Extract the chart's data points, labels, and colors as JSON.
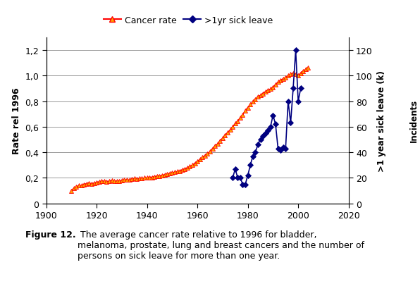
{
  "cancer_rate": {
    "years": [
      1910,
      1911,
      1912,
      1913,
      1914,
      1915,
      1916,
      1917,
      1918,
      1919,
      1920,
      1921,
      1922,
      1923,
      1924,
      1925,
      1926,
      1927,
      1928,
      1929,
      1930,
      1931,
      1932,
      1933,
      1934,
      1935,
      1936,
      1937,
      1938,
      1939,
      1940,
      1941,
      1942,
      1943,
      1944,
      1945,
      1946,
      1947,
      1948,
      1949,
      1950,
      1951,
      1952,
      1953,
      1954,
      1955,
      1956,
      1957,
      1958,
      1959,
      1960,
      1961,
      1962,
      1963,
      1964,
      1965,
      1966,
      1967,
      1968,
      1969,
      1970,
      1971,
      1972,
      1973,
      1974,
      1975,
      1976,
      1977,
      1978,
      1979,
      1980,
      1981,
      1982,
      1983,
      1984,
      1985,
      1986,
      1987,
      1988,
      1989,
      1990,
      1991,
      1992,
      1993,
      1994,
      1995,
      1996,
      1997,
      1998,
      1999,
      2000,
      2001,
      2002,
      2003,
      2004
    ],
    "values": [
      0.1,
      0.12,
      0.13,
      0.14,
      0.14,
      0.15,
      0.155,
      0.16,
      0.155,
      0.16,
      0.165,
      0.17,
      0.175,
      0.175,
      0.17,
      0.175,
      0.18,
      0.175,
      0.175,
      0.175,
      0.18,
      0.185,
      0.185,
      0.185,
      0.19,
      0.195,
      0.19,
      0.195,
      0.195,
      0.2,
      0.2,
      0.205,
      0.205,
      0.21,
      0.215,
      0.215,
      0.22,
      0.225,
      0.23,
      0.235,
      0.24,
      0.245,
      0.25,
      0.255,
      0.265,
      0.27,
      0.28,
      0.29,
      0.3,
      0.315,
      0.33,
      0.345,
      0.36,
      0.375,
      0.39,
      0.405,
      0.43,
      0.45,
      0.465,
      0.49,
      0.51,
      0.535,
      0.555,
      0.575,
      0.6,
      0.625,
      0.645,
      0.67,
      0.695,
      0.725,
      0.75,
      0.775,
      0.795,
      0.815,
      0.835,
      0.845,
      0.86,
      0.875,
      0.885,
      0.895,
      0.91,
      0.93,
      0.95,
      0.965,
      0.975,
      0.985,
      1.0,
      1.01,
      1.02,
      1.01,
      1.0,
      1.02,
      1.035,
      1.05,
      1.06
    ],
    "line_color": "#FF0000",
    "marker_face": "#FFA500",
    "marker_edge": "#FF0000",
    "marker": "^",
    "markersize": 4,
    "linewidth": 1.2
  },
  "sick_leave": {
    "years": [
      1974,
      1975,
      1976,
      1977,
      1978,
      1979,
      1980,
      1981,
      1982,
      1983,
      1984,
      1985,
      1986,
      1987,
      1988,
      1989,
      1990,
      1991,
      1992,
      1993,
      1994,
      1995,
      1996,
      1997,
      1998,
      1999,
      2000,
      2001
    ],
    "values": [
      20,
      27,
      20,
      20,
      15,
      15,
      22,
      30,
      37,
      40,
      46,
      50,
      53,
      55,
      57,
      60,
      69,
      62,
      43,
      42,
      44,
      43,
      80,
      63,
      90,
      120,
      80,
      90
    ],
    "line_color": "#000080",
    "marker_face": "#000080",
    "marker_edge": "#000080",
    "marker": "D",
    "markersize": 4,
    "linewidth": 1.2
  },
  "xlim": [
    1900,
    2020
  ],
  "xticks": [
    1900,
    1920,
    1940,
    1960,
    1980,
    2000,
    2020
  ],
  "ylim_left": [
    0,
    1.3
  ],
  "yticks_left": [
    0,
    0.2,
    0.4,
    0.6,
    0.8,
    1.0,
    1.2
  ],
  "ylim_right": [
    0,
    130
  ],
  "yticks_right": [
    0,
    20,
    40,
    60,
    80,
    100,
    120
  ],
  "ylabel_left": "Rate rel 1996",
  "ylabel_right_inner": ">1 year sick leave (k)",
  "ylabel_right_outer": "Incidents",
  "legend_cancer": "Cancer rate",
  "legend_sick": ">1yr sick leave",
  "caption_bold": "Figure 12.",
  "caption_normal": " The average cancer rate relative to 1996 for bladder,\nmelanoma, prostate, lung and breast cancers and the number of\npersons on sick leave for more than one year.",
  "background_color": "#ffffff",
  "grid_color": "#999999",
  "fig_width": 5.96,
  "fig_height": 4.14,
  "dpi": 100
}
